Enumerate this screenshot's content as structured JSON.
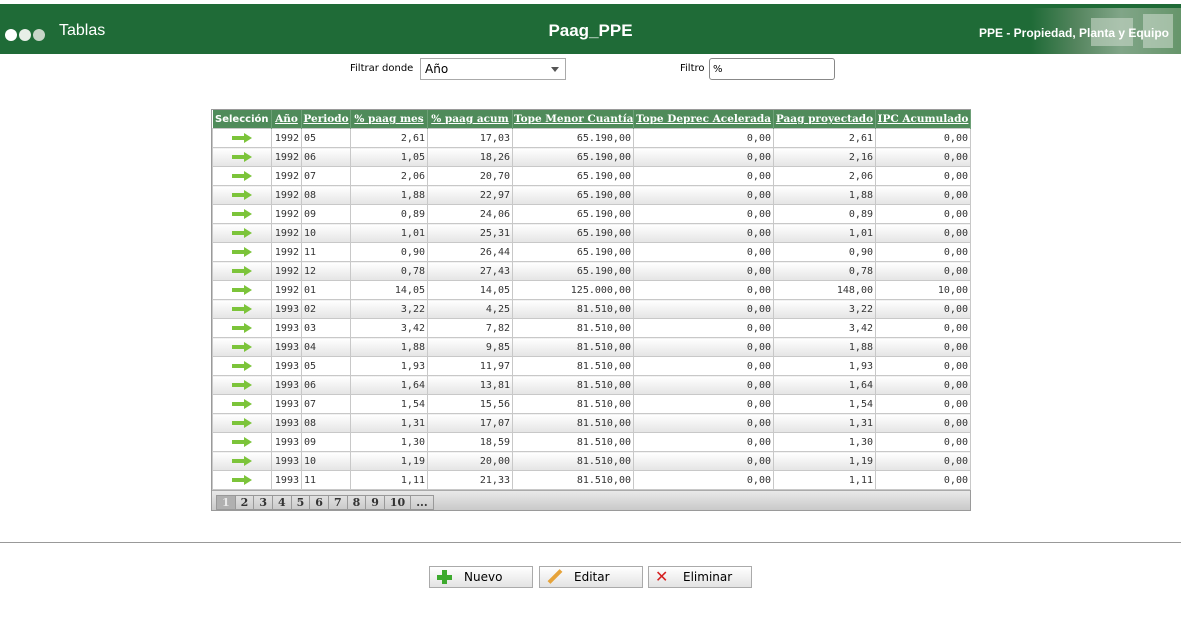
{
  "header": {
    "app_title": "Tablas",
    "page_title": "Paag_PPE",
    "module_title": "PPE - Propiedad, Planta y Equipo"
  },
  "filter": {
    "label": "Filtrar donde",
    "selected": "Año",
    "filtro_label": "Filtro",
    "filtro_value": "%"
  },
  "table": {
    "columns": [
      "Selección",
      "Año",
      "Periodo",
      "% paag mes",
      "% paag acum",
      "Tope Menor Cuantía",
      "Tope Deprec Acelerada",
      "Paag proyectado",
      "IPC Acumulado"
    ],
    "rows": [
      [
        "1992",
        "05",
        "2,61",
        "17,03",
        "65.190,00",
        "0,00",
        "2,61",
        "0,00"
      ],
      [
        "1992",
        "06",
        "1,05",
        "18,26",
        "65.190,00",
        "0,00",
        "2,16",
        "0,00"
      ],
      [
        "1992",
        "07",
        "2,06",
        "20,70",
        "65.190,00",
        "0,00",
        "2,06",
        "0,00"
      ],
      [
        "1992",
        "08",
        "1,88",
        "22,97",
        "65.190,00",
        "0,00",
        "1,88",
        "0,00"
      ],
      [
        "1992",
        "09",
        "0,89",
        "24,06",
        "65.190,00",
        "0,00",
        "0,89",
        "0,00"
      ],
      [
        "1992",
        "10",
        "1,01",
        "25,31",
        "65.190,00",
        "0,00",
        "1,01",
        "0,00"
      ],
      [
        "1992",
        "11",
        "0,90",
        "26,44",
        "65.190,00",
        "0,00",
        "0,90",
        "0,00"
      ],
      [
        "1992",
        "12",
        "0,78",
        "27,43",
        "65.190,00",
        "0,00",
        "0,78",
        "0,00"
      ],
      [
        "1992",
        "01",
        "14,05",
        "14,05",
        "125.000,00",
        "0,00",
        "148,00",
        "10,00"
      ],
      [
        "1993",
        "02",
        "3,22",
        "4,25",
        "81.510,00",
        "0,00",
        "3,22",
        "0,00"
      ],
      [
        "1993",
        "03",
        "3,42",
        "7,82",
        "81.510,00",
        "0,00",
        "3,42",
        "0,00"
      ],
      [
        "1993",
        "04",
        "1,88",
        "9,85",
        "81.510,00",
        "0,00",
        "1,88",
        "0,00"
      ],
      [
        "1993",
        "05",
        "1,93",
        "11,97",
        "81.510,00",
        "0,00",
        "1,93",
        "0,00"
      ],
      [
        "1993",
        "06",
        "1,64",
        "13,81",
        "81.510,00",
        "0,00",
        "1,64",
        "0,00"
      ],
      [
        "1993",
        "07",
        "1,54",
        "15,56",
        "81.510,00",
        "0,00",
        "1,54",
        "0,00"
      ],
      [
        "1993",
        "08",
        "1,31",
        "17,07",
        "81.510,00",
        "0,00",
        "1,31",
        "0,00"
      ],
      [
        "1993",
        "09",
        "1,30",
        "18,59",
        "81.510,00",
        "0,00",
        "1,30",
        "0,00"
      ],
      [
        "1993",
        "10",
        "1,19",
        "20,00",
        "81.510,00",
        "0,00",
        "1,19",
        "0,00"
      ],
      [
        "1993",
        "11",
        "1,11",
        "21,33",
        "81.510,00",
        "0,00",
        "1,11",
        "0,00"
      ]
    ],
    "select_icon": "arrow-right-icon",
    "pages": [
      "1",
      "2",
      "3",
      "4",
      "5",
      "6",
      "7",
      "8",
      "9",
      "10",
      "..."
    ],
    "current_page": "1"
  },
  "buttons": {
    "new_label": "Nuevo",
    "edit_label": "Editar",
    "delete_label": "Eliminar"
  },
  "colors": {
    "header_bg": "#1f6b37",
    "grid_header_bg": "#4f8b5a",
    "select_arrow": "#7cc43a"
  }
}
